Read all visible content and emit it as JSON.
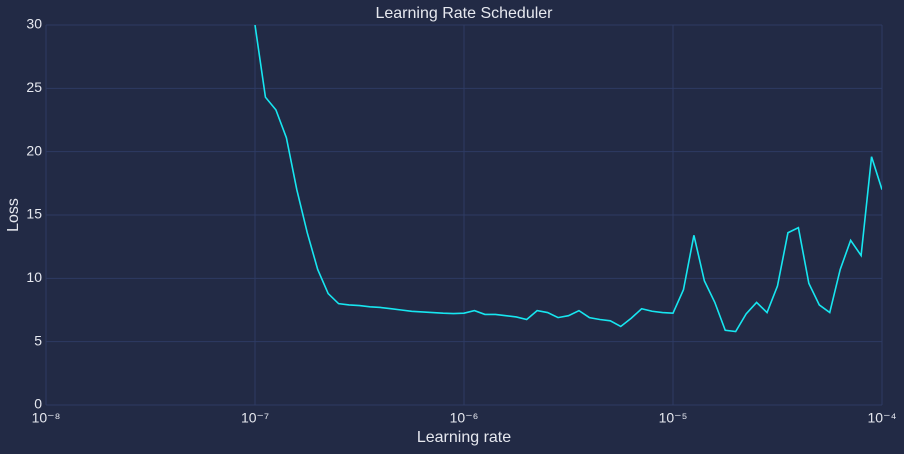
{
  "chart_data": {
    "type": "line",
    "title": "Learning Rate Scheduler",
    "x_label": "Learning rate",
    "y_label": "Loss",
    "x_scale": "log",
    "grid": true,
    "color": "#17e6f0",
    "x": [
      1e-07,
      1.122e-07,
      1.259e-07,
      1.413e-07,
      1.585e-07,
      1.778e-07,
      1.995e-07,
      2.239e-07,
      2.512e-07,
      2.818e-07,
      3.162e-07,
      3.548e-07,
      3.981e-07,
      4.467e-07,
      5.012e-07,
      5.623e-07,
      6.31e-07,
      7.079e-07,
      7.943e-07,
      8.913e-07,
      1e-06,
      1.122e-06,
      1.259e-06,
      1.413e-06,
      1.585e-06,
      1.778e-06,
      1.995e-06,
      2.239e-06,
      2.512e-06,
      2.818e-06,
      3.162e-06,
      3.548e-06,
      3.981e-06,
      4.467e-06,
      5.012e-06,
      5.623e-06,
      6.31e-06,
      7.079e-06,
      7.943e-06,
      8.913e-06,
      1e-05,
      1.122e-05,
      1.259e-05,
      1.413e-05,
      1.585e-05,
      1.778e-05,
      1.995e-05,
      2.239e-05,
      2.512e-05,
      2.818e-05,
      3.162e-05,
      3.548e-05,
      3.981e-05,
      4.467e-05,
      5.012e-05,
      5.623e-05,
      6.31e-05,
      7.079e-05,
      7.943e-05,
      8.913e-05,
      0.0001
    ],
    "values": [
      30,
      24.3,
      23.3,
      21.1,
      17,
      13.6,
      10.7,
      8.8,
      8.0,
      7.9,
      7.85,
      7.75,
      7.7,
      7.6,
      7.5,
      7.4,
      7.35,
      7.3,
      7.25,
      7.22,
      7.25,
      7.45,
      7.15,
      7.15,
      7.05,
      6.95,
      6.75,
      7.45,
      7.3,
      6.9,
      7.05,
      7.45,
      6.9,
      6.75,
      6.65,
      6.2,
      6.85,
      7.6,
      7.4,
      7.3,
      7.25,
      9.1,
      13.4,
      9.8,
      8.1,
      5.9,
      5.8,
      7.2,
      8.1,
      7.3,
      9.4,
      13.6,
      14.0,
      9.6,
      7.9,
      7.3,
      10.7,
      13.0,
      11.8,
      19.6,
      17.0
    ],
    "xlim": [
      1e-08,
      0.0001
    ],
    "xticks": [
      {
        "value": 1e-08,
        "label": "10⁻⁸"
      },
      {
        "value": 1e-07,
        "label": "10⁻⁷"
      },
      {
        "value": 1e-06,
        "label": "10⁻⁶"
      },
      {
        "value": 1e-05,
        "label": "10⁻⁵"
      },
      {
        "value": 0.0001,
        "label": "10⁻⁴"
      }
    ],
    "ylim": [
      0,
      30
    ],
    "yticks": [
      0,
      5,
      10,
      15,
      20,
      25,
      30
    ]
  }
}
